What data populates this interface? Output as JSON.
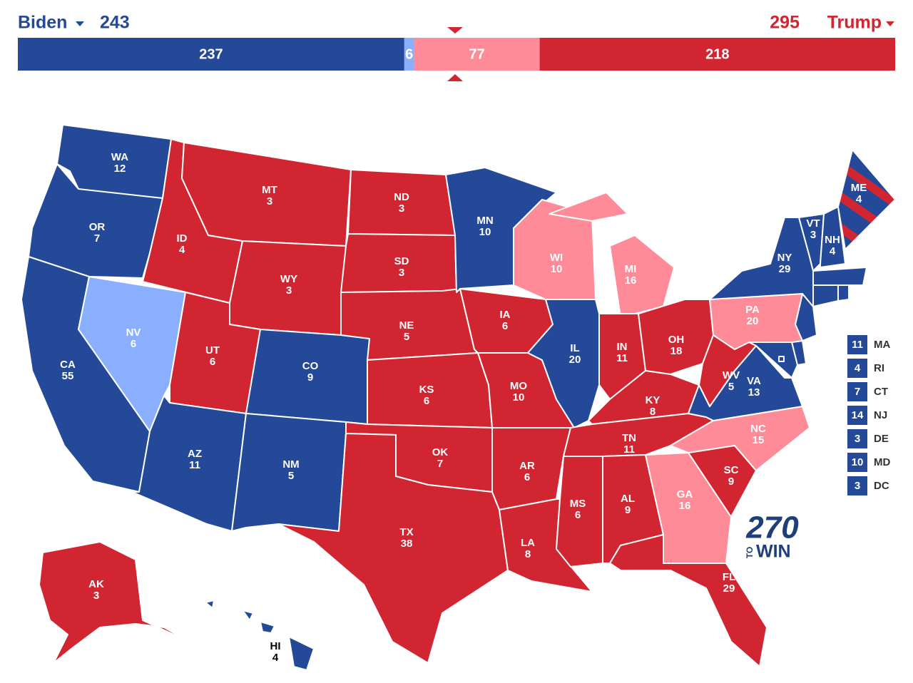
{
  "header": {
    "left_name": "Biden",
    "left_total": 243,
    "left_color": "#244999",
    "right_total": 295,
    "right_name": "Trump",
    "right_color": "#d22532"
  },
  "bar": {
    "segments": [
      {
        "value": 237,
        "color": "#244999"
      },
      {
        "value": 6,
        "color": "#8aafff"
      },
      {
        "value": 77,
        "color": "#ff8b98"
      },
      {
        "value": 218,
        "color": "#d22532"
      }
    ]
  },
  "states": [
    {
      "abbr": "WA",
      "votes": 12,
      "color": "#244999"
    },
    {
      "abbr": "OR",
      "votes": 7,
      "color": "#244999"
    },
    {
      "abbr": "CA",
      "votes": 55,
      "color": "#244999"
    },
    {
      "abbr": "NV",
      "votes": 6,
      "color": "#8aafff"
    },
    {
      "abbr": "ID",
      "votes": 4,
      "color": "#d22532"
    },
    {
      "abbr": "MT",
      "votes": 3,
      "color": "#d22532"
    },
    {
      "abbr": "WY",
      "votes": 3,
      "color": "#d22532"
    },
    {
      "abbr": "UT",
      "votes": 6,
      "color": "#d22532"
    },
    {
      "abbr": "AZ",
      "votes": 11,
      "color": "#244999"
    },
    {
      "abbr": "CO",
      "votes": 9,
      "color": "#244999"
    },
    {
      "abbr": "NM",
      "votes": 5,
      "color": "#244999"
    },
    {
      "abbr": "ND",
      "votes": 3,
      "color": "#d22532"
    },
    {
      "abbr": "SD",
      "votes": 3,
      "color": "#d22532"
    },
    {
      "abbr": "NE",
      "votes": 5,
      "color": "#d22532"
    },
    {
      "abbr": "KS",
      "votes": 6,
      "color": "#d22532"
    },
    {
      "abbr": "OK",
      "votes": 7,
      "color": "#d22532"
    },
    {
      "abbr": "TX",
      "votes": 38,
      "color": "#d22532"
    },
    {
      "abbr": "MN",
      "votes": 10,
      "color": "#244999"
    },
    {
      "abbr": "IA",
      "votes": 6,
      "color": "#d22532"
    },
    {
      "abbr": "MO",
      "votes": 10,
      "color": "#d22532"
    },
    {
      "abbr": "AR",
      "votes": 6,
      "color": "#d22532"
    },
    {
      "abbr": "LA",
      "votes": 8,
      "color": "#d22532"
    },
    {
      "abbr": "WI",
      "votes": 10,
      "color": "#ff8b98"
    },
    {
      "abbr": "IL",
      "votes": 20,
      "color": "#244999"
    },
    {
      "abbr": "MI",
      "votes": 16,
      "color": "#ff8b98"
    },
    {
      "abbr": "IN",
      "votes": 11,
      "color": "#d22532"
    },
    {
      "abbr": "OH",
      "votes": 18,
      "color": "#d22532"
    },
    {
      "abbr": "KY",
      "votes": 8,
      "color": "#d22532"
    },
    {
      "abbr": "TN",
      "votes": 11,
      "color": "#d22532"
    },
    {
      "abbr": "MS",
      "votes": 6,
      "color": "#d22532"
    },
    {
      "abbr": "AL",
      "votes": 9,
      "color": "#d22532"
    },
    {
      "abbr": "GA",
      "votes": 16,
      "color": "#ff8b98"
    },
    {
      "abbr": "FL",
      "votes": 29,
      "color": "#d22532"
    },
    {
      "abbr": "SC",
      "votes": 9,
      "color": "#d22532"
    },
    {
      "abbr": "NC",
      "votes": 15,
      "color": "#ff8b98"
    },
    {
      "abbr": "VA",
      "votes": 13,
      "color": "#244999"
    },
    {
      "abbr": "WV",
      "votes": 5,
      "color": "#d22532"
    },
    {
      "abbr": "PA",
      "votes": 20,
      "color": "#ff8b98"
    },
    {
      "abbr": "NY",
      "votes": 29,
      "color": "#244999"
    },
    {
      "abbr": "VT",
      "votes": 3,
      "color": "#244999"
    },
    {
      "abbr": "NH",
      "votes": 4,
      "color": "#244999"
    },
    {
      "abbr": "ME",
      "votes": 4,
      "color": [
        "#244999",
        "#d22532"
      ]
    },
    {
      "abbr": "AK",
      "votes": 3,
      "color": "#d22532"
    },
    {
      "abbr": "HI",
      "votes": 4,
      "color": "#244999"
    }
  ],
  "small_states": [
    {
      "abbr": "MA",
      "votes": 11,
      "color": "#244999"
    },
    {
      "abbr": "RI",
      "votes": 4,
      "color": "#244999"
    },
    {
      "abbr": "CT",
      "votes": 7,
      "color": "#244999"
    },
    {
      "abbr": "NJ",
      "votes": 14,
      "color": "#244999"
    },
    {
      "abbr": "DE",
      "votes": 3,
      "color": "#244999"
    },
    {
      "abbr": "MD",
      "votes": 10,
      "color": "#244999"
    },
    {
      "abbr": "DC",
      "votes": 3,
      "color": "#244999"
    }
  ],
  "logo": {
    "number": "270",
    "to": "TO",
    "win": "WIN"
  }
}
